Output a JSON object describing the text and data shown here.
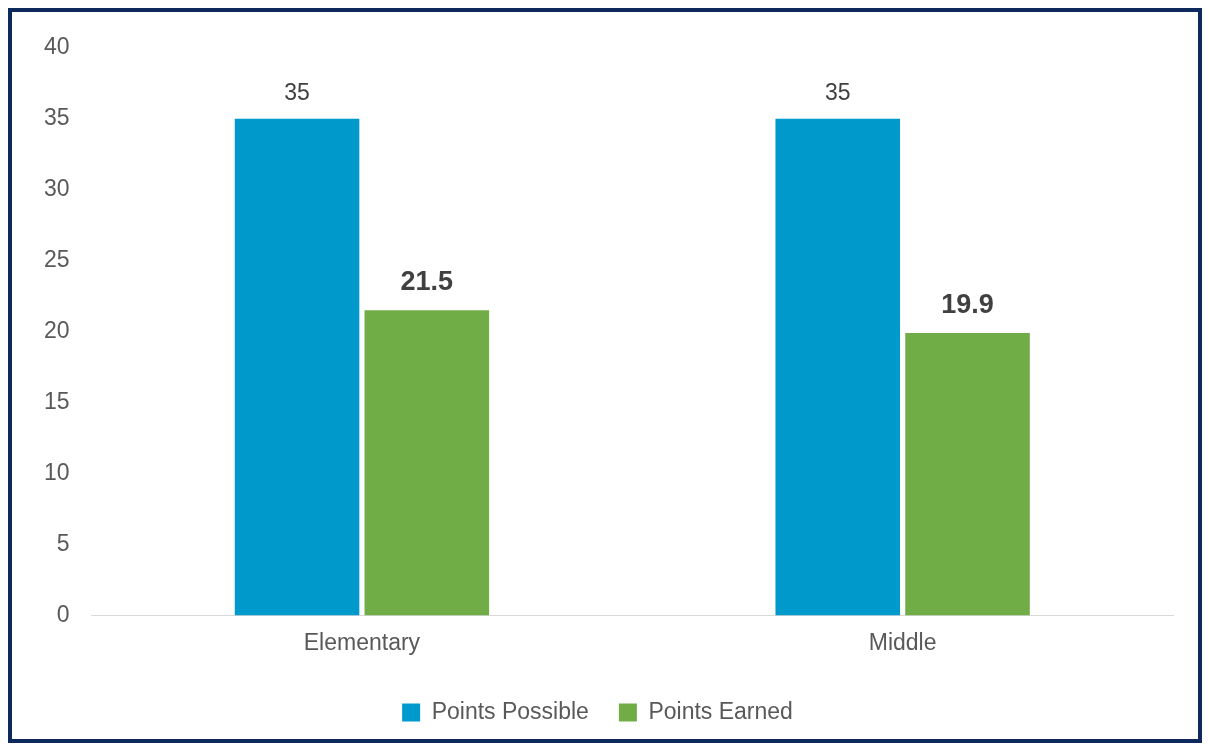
{
  "chart_data": {
    "type": "bar",
    "categories": [
      "Elementary",
      "Middle"
    ],
    "series": [
      {
        "name": "Points Possible",
        "color": "#0099cc",
        "values": [
          35,
          35
        ]
      },
      {
        "name": "Points Earned",
        "color": "#70ad47",
        "values": [
          21.5,
          19.9
        ]
      }
    ],
    "ylim": [
      0,
      40
    ],
    "yticks": [
      0,
      5,
      10,
      15,
      20,
      25,
      30,
      35,
      40
    ],
    "grid": false,
    "legend": "bottom",
    "data_labels": true
  }
}
